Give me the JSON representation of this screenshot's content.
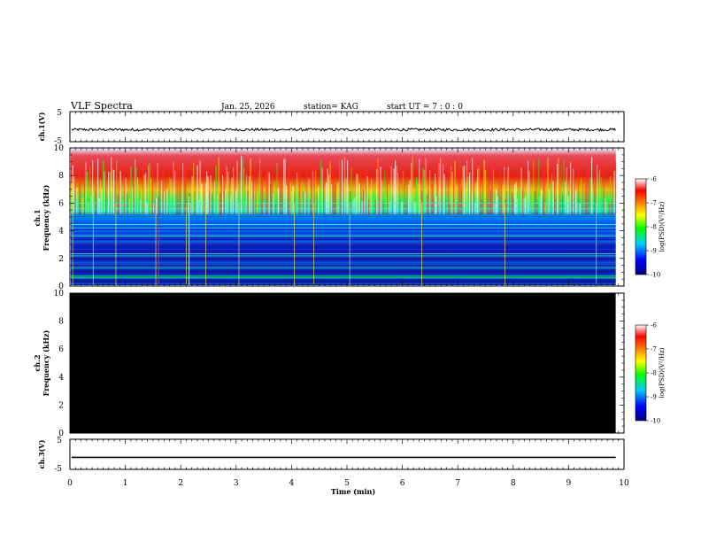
{
  "header": {
    "title": "VLF Spectra",
    "date": "Jan. 25, 2026",
    "station": "station= KAG",
    "start": "start UT =  7 : 0 : 0"
  },
  "colors": {
    "ch1_bg": "#0a1aa8",
    "ch2_bg": "#000000",
    "colormap": [
      "#000080",
      "#0000ff",
      "#00ffff",
      "#00ff00",
      "#ffff00",
      "#ff0000",
      "#ffffff"
    ]
  },
  "chart_data": [
    {
      "type": "line",
      "name": "ch1-waveform",
      "ylabel": "ch.1(V)",
      "ylim": [
        -5,
        5
      ],
      "ytick_labels": [
        "5",
        "-5"
      ],
      "x": [
        0,
        1,
        2,
        3,
        4,
        5,
        6,
        7,
        8,
        9,
        9.85
      ],
      "values": [
        -1.0,
        -1.0,
        -1.0,
        -1.0,
        -1.0,
        -1.0,
        -1.0,
        -1.0,
        -1.0,
        -1.0,
        -1.0
      ]
    },
    {
      "type": "heatmap",
      "name": "ch1-spectrogram",
      "ylabel": "ch.1",
      "ylabel2": "Frequency (kHz)",
      "ylim": [
        0,
        10
      ],
      "ytick_labels": [
        "0",
        "2",
        "4",
        "6",
        "8",
        "10"
      ],
      "yticks": [
        0,
        2,
        4,
        6,
        8,
        10
      ],
      "colorbar": {
        "label": "log(PSD)(V²/Hz)",
        "ticks": [
          -6,
          -7,
          -8,
          -9,
          -10
        ],
        "tick_labels": [
          "-6",
          "-7",
          "-8",
          "-9",
          "-10"
        ]
      }
    },
    {
      "type": "heatmap",
      "name": "ch2-spectrogram",
      "ylabel": "ch.2",
      "ylabel2": "Frequency (kHz)",
      "ylim": [
        0,
        10
      ],
      "ytick_labels": [
        "0",
        "2",
        "4",
        "6",
        "8",
        "10"
      ],
      "yticks": [
        0,
        2,
        4,
        6,
        8,
        10
      ],
      "colorbar": {
        "label": "log(PSD)(V²/Hz)",
        "ticks": [
          -6,
          -7,
          -8,
          -9,
          -10
        ],
        "tick_labels": [
          "-6",
          "-7",
          "-8",
          "-9",
          "-10"
        ]
      }
    },
    {
      "type": "line",
      "name": "ch3-waveform",
      "ylabel": "ch.3(V)",
      "ylim": [
        -5,
        5
      ],
      "ytick_labels": [
        "5",
        "-5"
      ],
      "x": [
        0,
        9.85
      ],
      "values": [
        -1.0,
        -1.0
      ]
    }
  ],
  "xaxis": {
    "label": "Time (min)",
    "xlim": [
      0,
      10
    ],
    "ticks": [
      0,
      1,
      2,
      3,
      4,
      5,
      6,
      7,
      8,
      9,
      10
    ],
    "tick_labels": [
      "0",
      "1",
      "2",
      "3",
      "4",
      "5",
      "6",
      "7",
      "8",
      "9",
      "10"
    ],
    "data_end": 9.85
  }
}
